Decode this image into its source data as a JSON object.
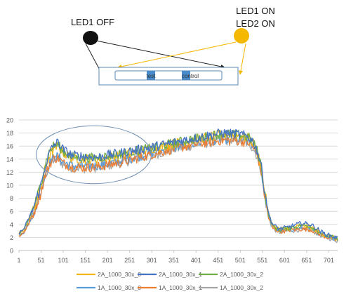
{
  "diagram": {
    "off_label": "LED1 OFF",
    "on_label_1": "LED1 ON",
    "on_label_2": "LED2 ON",
    "test_label": "test",
    "control_label": "control",
    "colors": {
      "off_led": "#111111",
      "on_led": "#F5B800",
      "arrow_off": "#222222",
      "arrow_on": "#F5B800",
      "window": "#5B87B5",
      "window_fill": "#4A8CCB"
    }
  },
  "chart_data": {
    "type": "line",
    "title": "",
    "xlabel": "",
    "ylabel": "",
    "xlim": [
      1,
      721
    ],
    "ylim": [
      0,
      20
    ],
    "x_ticks": [
      1,
      51,
      101,
      151,
      201,
      251,
      301,
      351,
      401,
      451,
      501,
      551,
      601,
      651,
      701
    ],
    "y_ticks": [
      0,
      2,
      4,
      6,
      8,
      10,
      12,
      14,
      16,
      18,
      20
    ],
    "grid": true,
    "legend_position": "bottom",
    "highlight_ellipse": {
      "x_range": [
        40,
        300
      ],
      "y_range": [
        11,
        19
      ]
    },
    "profile_x": [
      1,
      10,
      20,
      35,
      50,
      60,
      70,
      80,
      90,
      100,
      120,
      150,
      180,
      200,
      230,
      260,
      300,
      340,
      380,
      420,
      460,
      500,
      520,
      530,
      540,
      548,
      555,
      565,
      575,
      590,
      610,
      640,
      660,
      690,
      720
    ],
    "series": [
      {
        "name": "2A_1000_30x_0",
        "color": "#F2B51A",
        "values": [
          2.6,
          3.0,
          4.2,
          6.5,
          9.5,
          12.5,
          14.5,
          15.6,
          16.0,
          15.0,
          14.2,
          14.0,
          14.0,
          14.3,
          14.6,
          15.0,
          15.6,
          16.2,
          16.8,
          17.3,
          17.8,
          17.6,
          17.2,
          16.5,
          15.0,
          13.0,
          9.5,
          5.5,
          3.8,
          3.2,
          3.4,
          3.8,
          3.6,
          2.4,
          1.8
        ]
      },
      {
        "name": "2A_1000_30x_1",
        "color": "#4472C4",
        "values": [
          2.7,
          3.1,
          4.4,
          6.8,
          9.8,
          12.8,
          15.0,
          16.2,
          16.6,
          15.5,
          14.6,
          14.4,
          14.3,
          14.6,
          14.9,
          15.3,
          15.8,
          16.4,
          17.0,
          17.5,
          18.0,
          17.8,
          17.4,
          16.7,
          15.2,
          13.2,
          9.6,
          5.6,
          3.9,
          3.3,
          3.6,
          4.2,
          4.0,
          2.6,
          1.9
        ]
      },
      {
        "name": "2A_1000_30x_2",
        "color": "#70AD47",
        "values": [
          2.5,
          2.9,
          4.3,
          6.8,
          10.0,
          13.2,
          15.2,
          16.1,
          16.2,
          15.2,
          14.4,
          14.2,
          14.2,
          14.5,
          14.8,
          15.2,
          15.7,
          16.3,
          16.9,
          17.4,
          17.9,
          17.7,
          17.3,
          16.6,
          15.1,
          13.1,
          9.4,
          5.4,
          3.7,
          3.1,
          3.4,
          3.9,
          3.7,
          2.4,
          1.8
        ]
      },
      {
        "name": "1A_1000_30x_0",
        "color": "#5B9BD5",
        "values": [
          2.4,
          2.7,
          3.8,
          6.0,
          8.8,
          11.6,
          13.4,
          14.3,
          14.4,
          13.6,
          13.0,
          12.9,
          13.0,
          13.3,
          13.7,
          14.2,
          14.9,
          15.6,
          16.2,
          16.7,
          17.1,
          17.0,
          16.7,
          16.0,
          14.6,
          12.6,
          9.0,
          5.2,
          3.5,
          3.0,
          3.2,
          3.4,
          3.3,
          2.3,
          1.7
        ]
      },
      {
        "name": "1A_1000_30x_1",
        "color": "#ED7D31",
        "values": [
          2.3,
          2.6,
          3.7,
          5.9,
          8.7,
          11.4,
          13.2,
          14.1,
          14.2,
          13.4,
          12.8,
          12.7,
          12.8,
          13.1,
          13.5,
          14.0,
          14.7,
          15.4,
          16.0,
          16.5,
          16.9,
          16.8,
          16.5,
          15.8,
          14.4,
          12.4,
          8.8,
          5.0,
          3.4,
          2.9,
          3.1,
          3.3,
          3.2,
          2.2,
          1.6
        ]
      },
      {
        "name": "1A_1000_30x_2",
        "color": "#A5A5A5",
        "values": [
          2.2,
          2.5,
          3.6,
          5.8,
          8.6,
          11.3,
          13.1,
          13.9,
          14.0,
          13.2,
          12.7,
          12.6,
          12.7,
          13.0,
          13.4,
          13.9,
          14.6,
          15.3,
          15.9,
          16.4,
          16.8,
          16.7,
          16.4,
          15.7,
          14.3,
          12.3,
          8.7,
          4.9,
          3.3,
          2.8,
          3.0,
          3.2,
          3.1,
          2.1,
          1.5
        ]
      }
    ]
  }
}
